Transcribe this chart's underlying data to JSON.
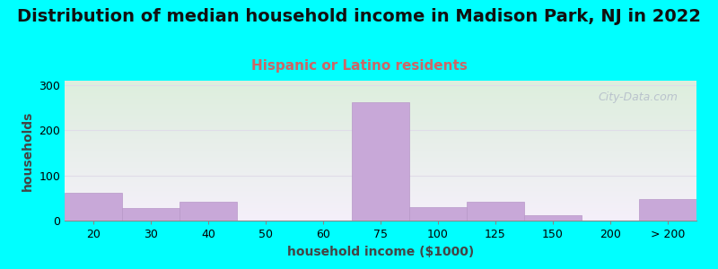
{
  "title": "Distribution of median household income in Madison Park, NJ in 2022",
  "subtitle": "Hispanic or Latino residents",
  "xlabel": "household income ($1000)",
  "ylabel": "households",
  "background_color": "#00FFFF",
  "plot_bg_top": "#ddeedd",
  "plot_bg_bottom": "#f5f0fa",
  "bar_color": "#c8a8d8",
  "bar_edge_color": "#b898c8",
  "categories": [
    "20",
    "30",
    "40",
    "50",
    "60",
    "75",
    "100",
    "125",
    "150",
    "200",
    "> 200"
  ],
  "values": [
    62,
    28,
    42,
    0,
    0,
    262,
    30,
    42,
    11,
    0,
    48
  ],
  "ylim": [
    0,
    310
  ],
  "yticks": [
    0,
    100,
    200,
    300
  ],
  "title_fontsize": 14,
  "subtitle_fontsize": 11,
  "subtitle_color": "#cc6666",
  "axis_label_fontsize": 10,
  "tick_fontsize": 9,
  "watermark_text": "City-Data.com",
  "watermark_color": "#b0b8c8"
}
